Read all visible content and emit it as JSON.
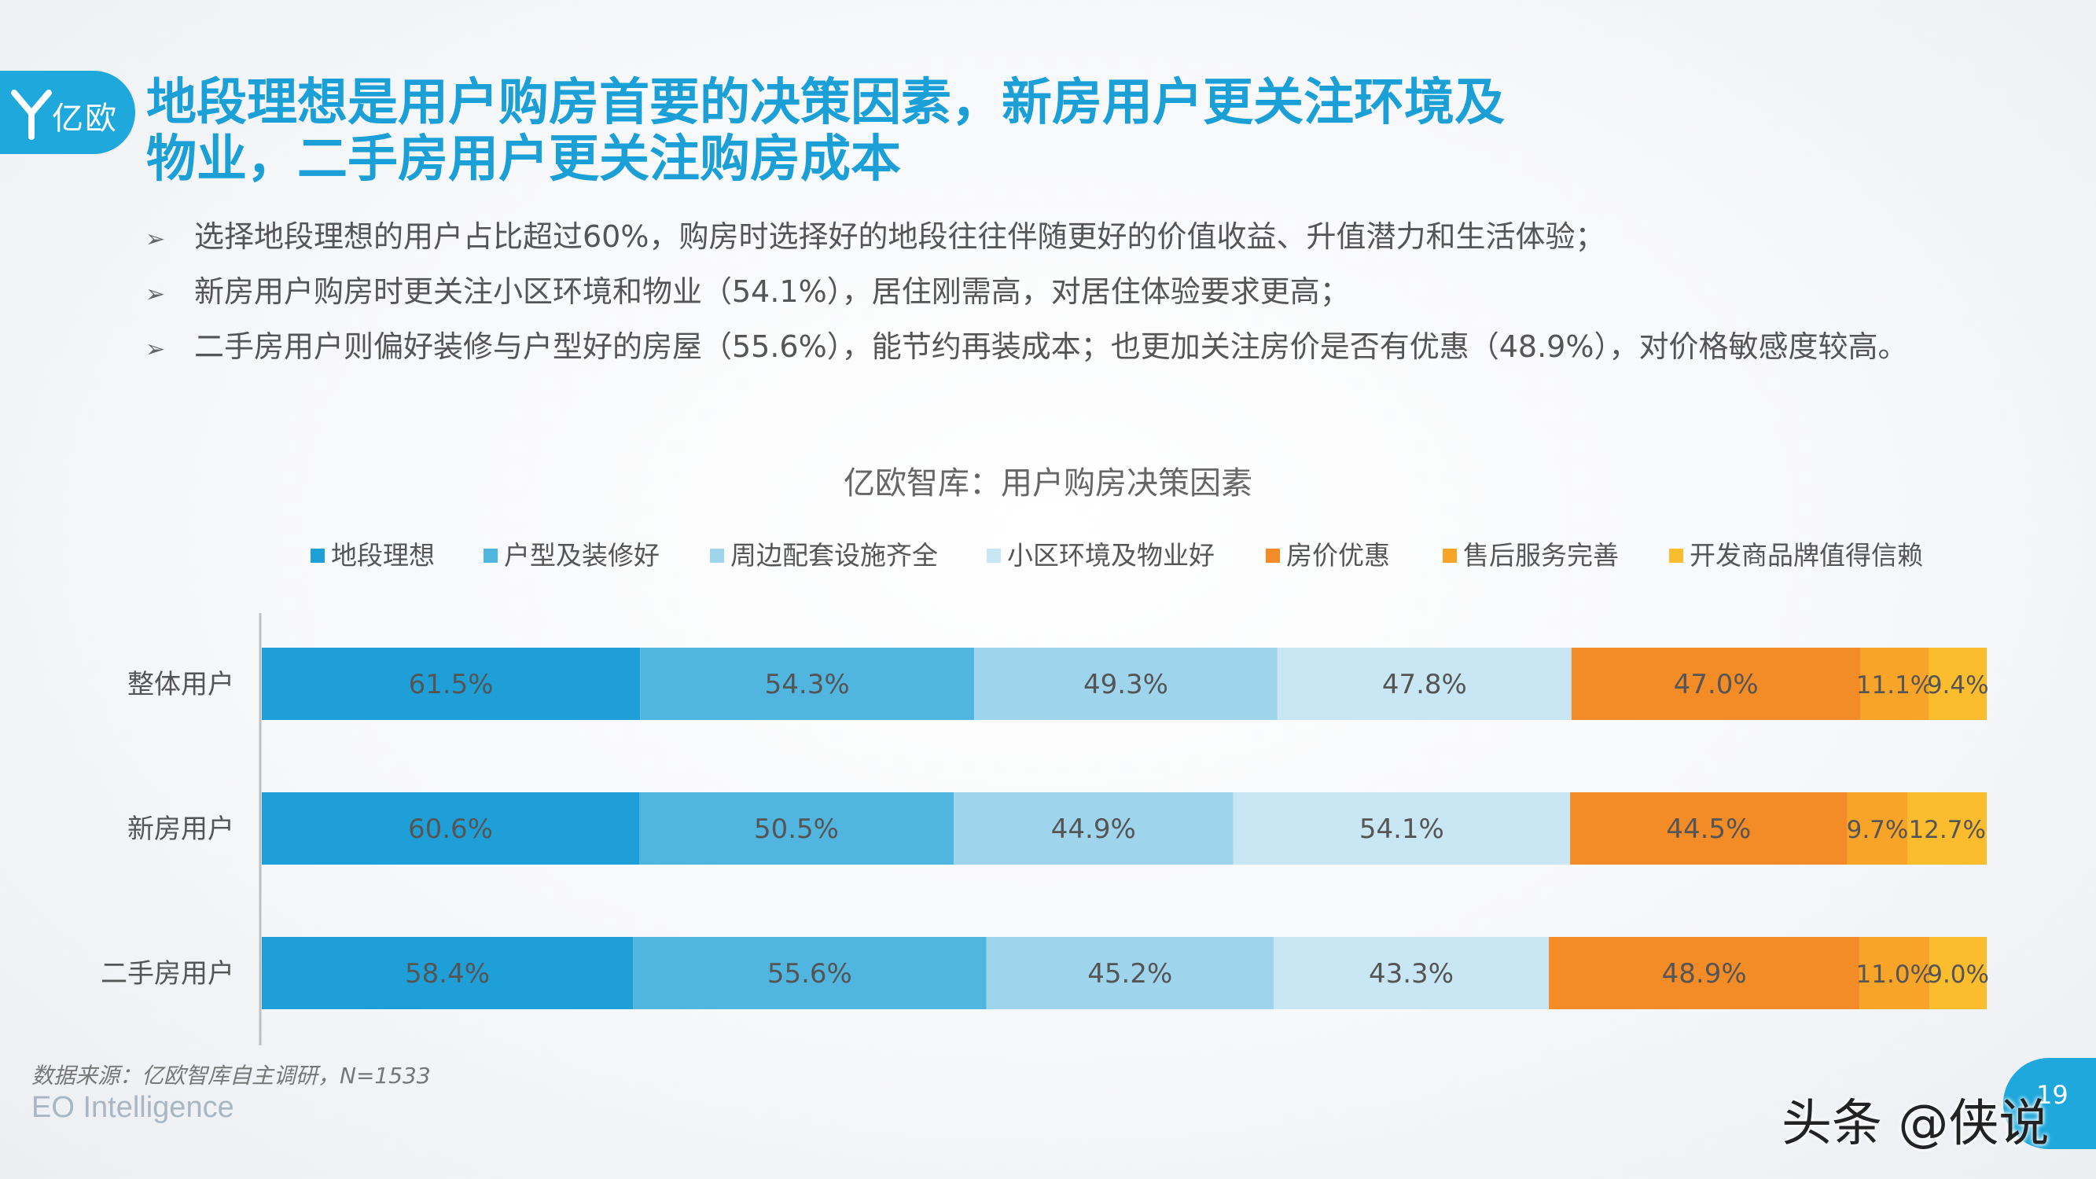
{
  "header": {
    "logo_text": "亿欧",
    "title_line1": "地段理想是用户购房首要的决策因素，新房用户更关注环境及",
    "title_line2": "物业，二手房用户更关注购房成本"
  },
  "bullets": [
    "选择地段理想的用户占比超过60%，购房时选择好的地段往往伴随更好的价值收益、升值潜力和生活体验；",
    "新房用户购房时更关注小区环境和物业（54.1%），居住刚需高，对居住体验要求更高；",
    "二手房用户则偏好装修与户型好的房屋（55.6%），能节约再装成本；也更加关注房价是否有优惠（48.9%），对价格敏感度较高。"
  ],
  "bullet_marker": "➢",
  "chart_data": {
    "type": "bar",
    "orientation": "horizontal",
    "stacked": true,
    "title": "亿欧智库：用户购房决策因素",
    "categories": [
      "整体用户",
      "新房用户",
      "二手房用户"
    ],
    "series": [
      {
        "name": "地段理想",
        "values": [
          61.5,
          60.6,
          58.4
        ],
        "labels": [
          "61.5%",
          "60.6%",
          "58.4%"
        ],
        "color": "#1e9fd7"
      },
      {
        "name": "户型及装修好",
        "values": [
          54.3,
          50.5,
          55.6
        ],
        "labels": [
          "54.3%",
          "50.5%",
          "55.6%"
        ],
        "color": "#50b6e0"
      },
      {
        "name": "周边配套设施齐全",
        "values": [
          49.3,
          44.9,
          45.2
        ],
        "labels": [
          "49.3%",
          "44.9%",
          "45.2%"
        ],
        "color": "#9fd5ec"
      },
      {
        "name": "小区环境及物业好",
        "values": [
          47.8,
          54.1,
          43.3
        ],
        "labels": [
          "47.8%",
          "54.1%",
          "43.3%"
        ],
        "color": "#c8e6f4"
      },
      {
        "name": "房价优惠",
        "values": [
          47.0,
          44.5,
          48.9
        ],
        "labels": [
          "47.0%",
          "44.5%",
          "48.9%"
        ],
        "color": "#f38b27"
      },
      {
        "name": "售后服务完善",
        "values": [
          11.1,
          9.7,
          11.0
        ],
        "labels": [
          "11.1%",
          "9.7%",
          "11.0%"
        ],
        "color": "#f7a428"
      },
      {
        "name": "开发商品牌值得信赖",
        "values": [
          9.4,
          12.7,
          9.0
        ],
        "labels": [
          "9.4%",
          "12.7%",
          "9.0%"
        ],
        "color": "#fbbd2e"
      }
    ],
    "legend_position": "top",
    "grid": false
  },
  "footer": {
    "source": "数据来源：亿欧智库自主调研，N=1533",
    "brand": "EO Intelligence",
    "page_number": "19",
    "watermark": "头条 @侠说"
  },
  "colors": {
    "brand_blue": "#1ea8dc",
    "title_blue": "#1b9fd7"
  }
}
